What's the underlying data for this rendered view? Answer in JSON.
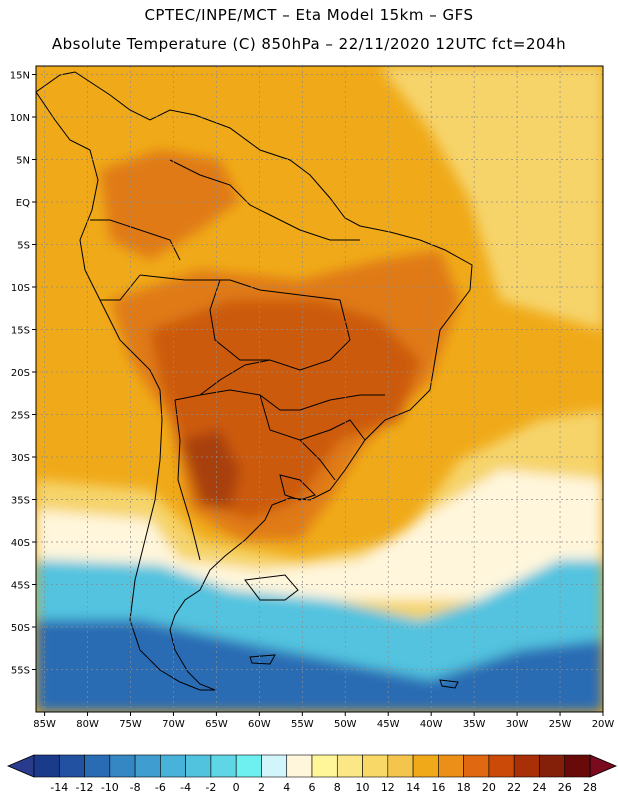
{
  "title_line1": "CPTEC/INPE/MCT –  Eta Model 15km – GFS",
  "title_line2": "Absolute Temperature (C) 850hPa – 22/11/2020 12UTC fct=204h",
  "map": {
    "lat_ticks": [
      "15N",
      "10N",
      "5N",
      "EQ",
      "5S",
      "10S",
      "15S",
      "20S",
      "25S",
      "30S",
      "35S",
      "40S",
      "45S",
      "50S",
      "55S"
    ],
    "lat_values": [
      15,
      10,
      5,
      0,
      -5,
      -10,
      -15,
      -20,
      -25,
      -30,
      -35,
      -40,
      -45,
      -50,
      -55
    ],
    "lon_ticks": [
      "85W",
      "80W",
      "75W",
      "70W",
      "65W",
      "60W",
      "55W",
      "50W",
      "45W",
      "40W",
      "35W",
      "30W",
      "25W",
      "20W"
    ],
    "lon_values": [
      -85,
      -80,
      -75,
      -70,
      -65,
      -60,
      -55,
      -50,
      -45,
      -40,
      -35,
      -30,
      -25,
      -20
    ],
    "lat_range": [
      -60,
      16
    ],
    "lon_range": [
      -86,
      -20
    ]
  },
  "colorbar": {
    "labels": [
      "-14",
      "-12",
      "-10",
      "-8",
      "-6",
      "-4",
      "-2",
      "0",
      "2",
      "4",
      "6",
      "8",
      "10",
      "12",
      "14",
      "16",
      "18",
      "20",
      "22",
      "24",
      "26",
      "28"
    ],
    "colors": [
      "#1a3a8a",
      "#2151a0",
      "#2a6cb4",
      "#3587c4",
      "#3f9ecf",
      "#48b2d8",
      "#52c3df",
      "#5fd6e6",
      "#6ef0f0",
      "#d2f5fb",
      "#fff6dc",
      "#fff69a",
      "#fbe785",
      "#f8d968",
      "#f3c54d",
      "#f0aa19",
      "#eb8f18",
      "#e06810",
      "#cb4a08",
      "#a92f06",
      "#84200a",
      "#690a0a"
    ],
    "under_color": "#2a3a8c",
    "over_color": "#7a0a1e"
  },
  "colors": {
    "warm_base": "#f0aa19",
    "hot": "#e07a15",
    "very_hot": "#cc5a10",
    "hottest": "#a8400a",
    "cool_mid": "#f6d46a",
    "cold": "#52c3df",
    "coldest": "#2a6cb4",
    "land_border": "#000000"
  }
}
